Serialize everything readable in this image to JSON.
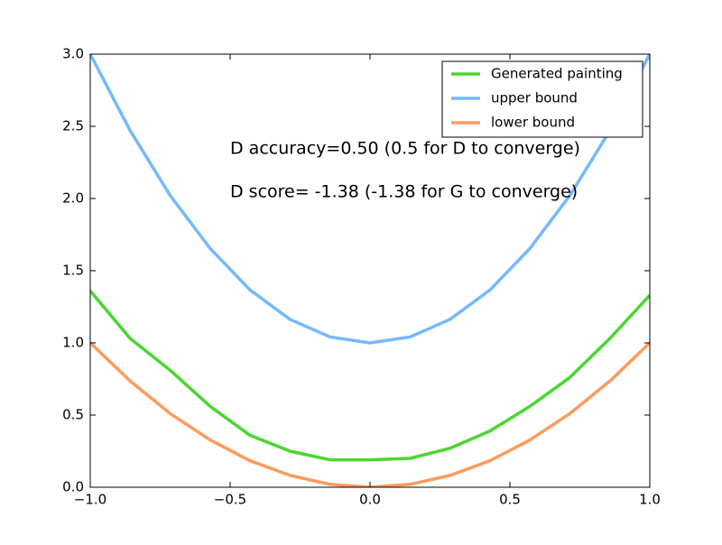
{
  "chart_data": {
    "type": "line",
    "x": [
      -1,
      -0.857,
      -0.714,
      -0.571,
      -0.429,
      -0.286,
      -0.143,
      0,
      0.143,
      0.286,
      0.429,
      0.571,
      0.714,
      0.857,
      1
    ],
    "series": [
      {
        "name": "Generated painting",
        "color": "#4ad631",
        "values": [
          1.36,
          1.03,
          0.81,
          0.56,
          0.36,
          0.25,
          0.19,
          0.19,
          0.2,
          0.27,
          0.39,
          0.56,
          0.76,
          1.03,
          1.33
        ]
      },
      {
        "name": "upper bound",
        "color": "#74b9ff",
        "values": [
          3,
          2.469,
          2.02,
          1.653,
          1.367,
          1.163,
          1.041,
          1,
          1.041,
          1.163,
          1.367,
          1.653,
          2.02,
          2.469,
          3
        ]
      },
      {
        "name": "lower bound",
        "color": "#ff9a5c",
        "values": [
          1,
          0.735,
          0.51,
          0.327,
          0.184,
          0.082,
          0.02,
          0,
          0.02,
          0.082,
          0.184,
          0.327,
          0.51,
          0.735,
          1
        ]
      }
    ],
    "xlim": [
      -1,
      1
    ],
    "ylim": [
      0,
      3
    ],
    "xticks": [
      {
        "value": -1,
        "label": "−1.0"
      },
      {
        "value": -0.5,
        "label": "−0.5"
      },
      {
        "value": 0,
        "label": "0.0"
      },
      0.5,
      {
        "value": 1,
        "label": "1.0"
      }
    ],
    "yticks": [
      {
        "value": 0,
        "label": "0.0"
      },
      0.5,
      {
        "value": 1,
        "label": "1.0"
      },
      1.5,
      {
        "value": 2,
        "label": "2.0"
      },
      2.5,
      {
        "value": 3,
        "label": "3.0"
      }
    ],
    "grid": false,
    "legend": "upper right",
    "annotations": [
      "D accuracy=0.50 (0.5 for D to converge)",
      "D score= -1.38 (-1.38 for G to converge)"
    ]
  }
}
